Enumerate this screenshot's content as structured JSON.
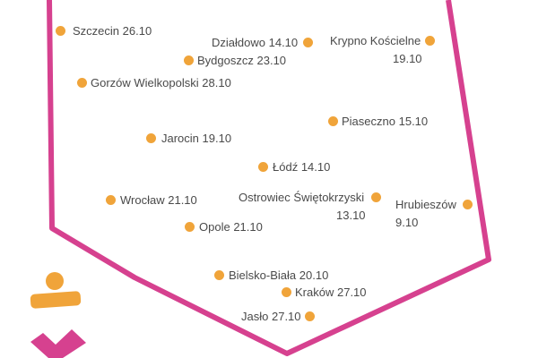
{
  "colors": {
    "outline": "#d6418f",
    "dot": "#f0a43a",
    "text": "#4a4a4a",
    "logo_orange": "#f0a43a",
    "logo_pink": "#d6418f"
  },
  "cities": [
    {
      "name": "Szczecin",
      "date": "26.10"
    },
    {
      "name": "Działdowo",
      "date": "14.10"
    },
    {
      "name": "Krypno Kościelne",
      "date": "19.10"
    },
    {
      "name": "Bydgoszcz",
      "date": "23.10"
    },
    {
      "name": "Gorzów Wielkopolski",
      "date": "28.10"
    },
    {
      "name": "Piaseczno",
      "date": "15.10"
    },
    {
      "name": "Jarocin",
      "date": "19.10"
    },
    {
      "name": "Łódź",
      "date": "14.10"
    },
    {
      "name": "Wrocław",
      "date": "21.10"
    },
    {
      "name": "Ostrowiec Świętokrzyski",
      "date": "13.10"
    },
    {
      "name": "Hrubieszów",
      "date": "9.10"
    },
    {
      "name": "Opole",
      "date": "21.10"
    },
    {
      "name": "Bielsko-Biała",
      "date": "20.10"
    },
    {
      "name": "Kraków",
      "date": "27.10"
    },
    {
      "name": "Jasło",
      "date": "27.10"
    }
  ]
}
